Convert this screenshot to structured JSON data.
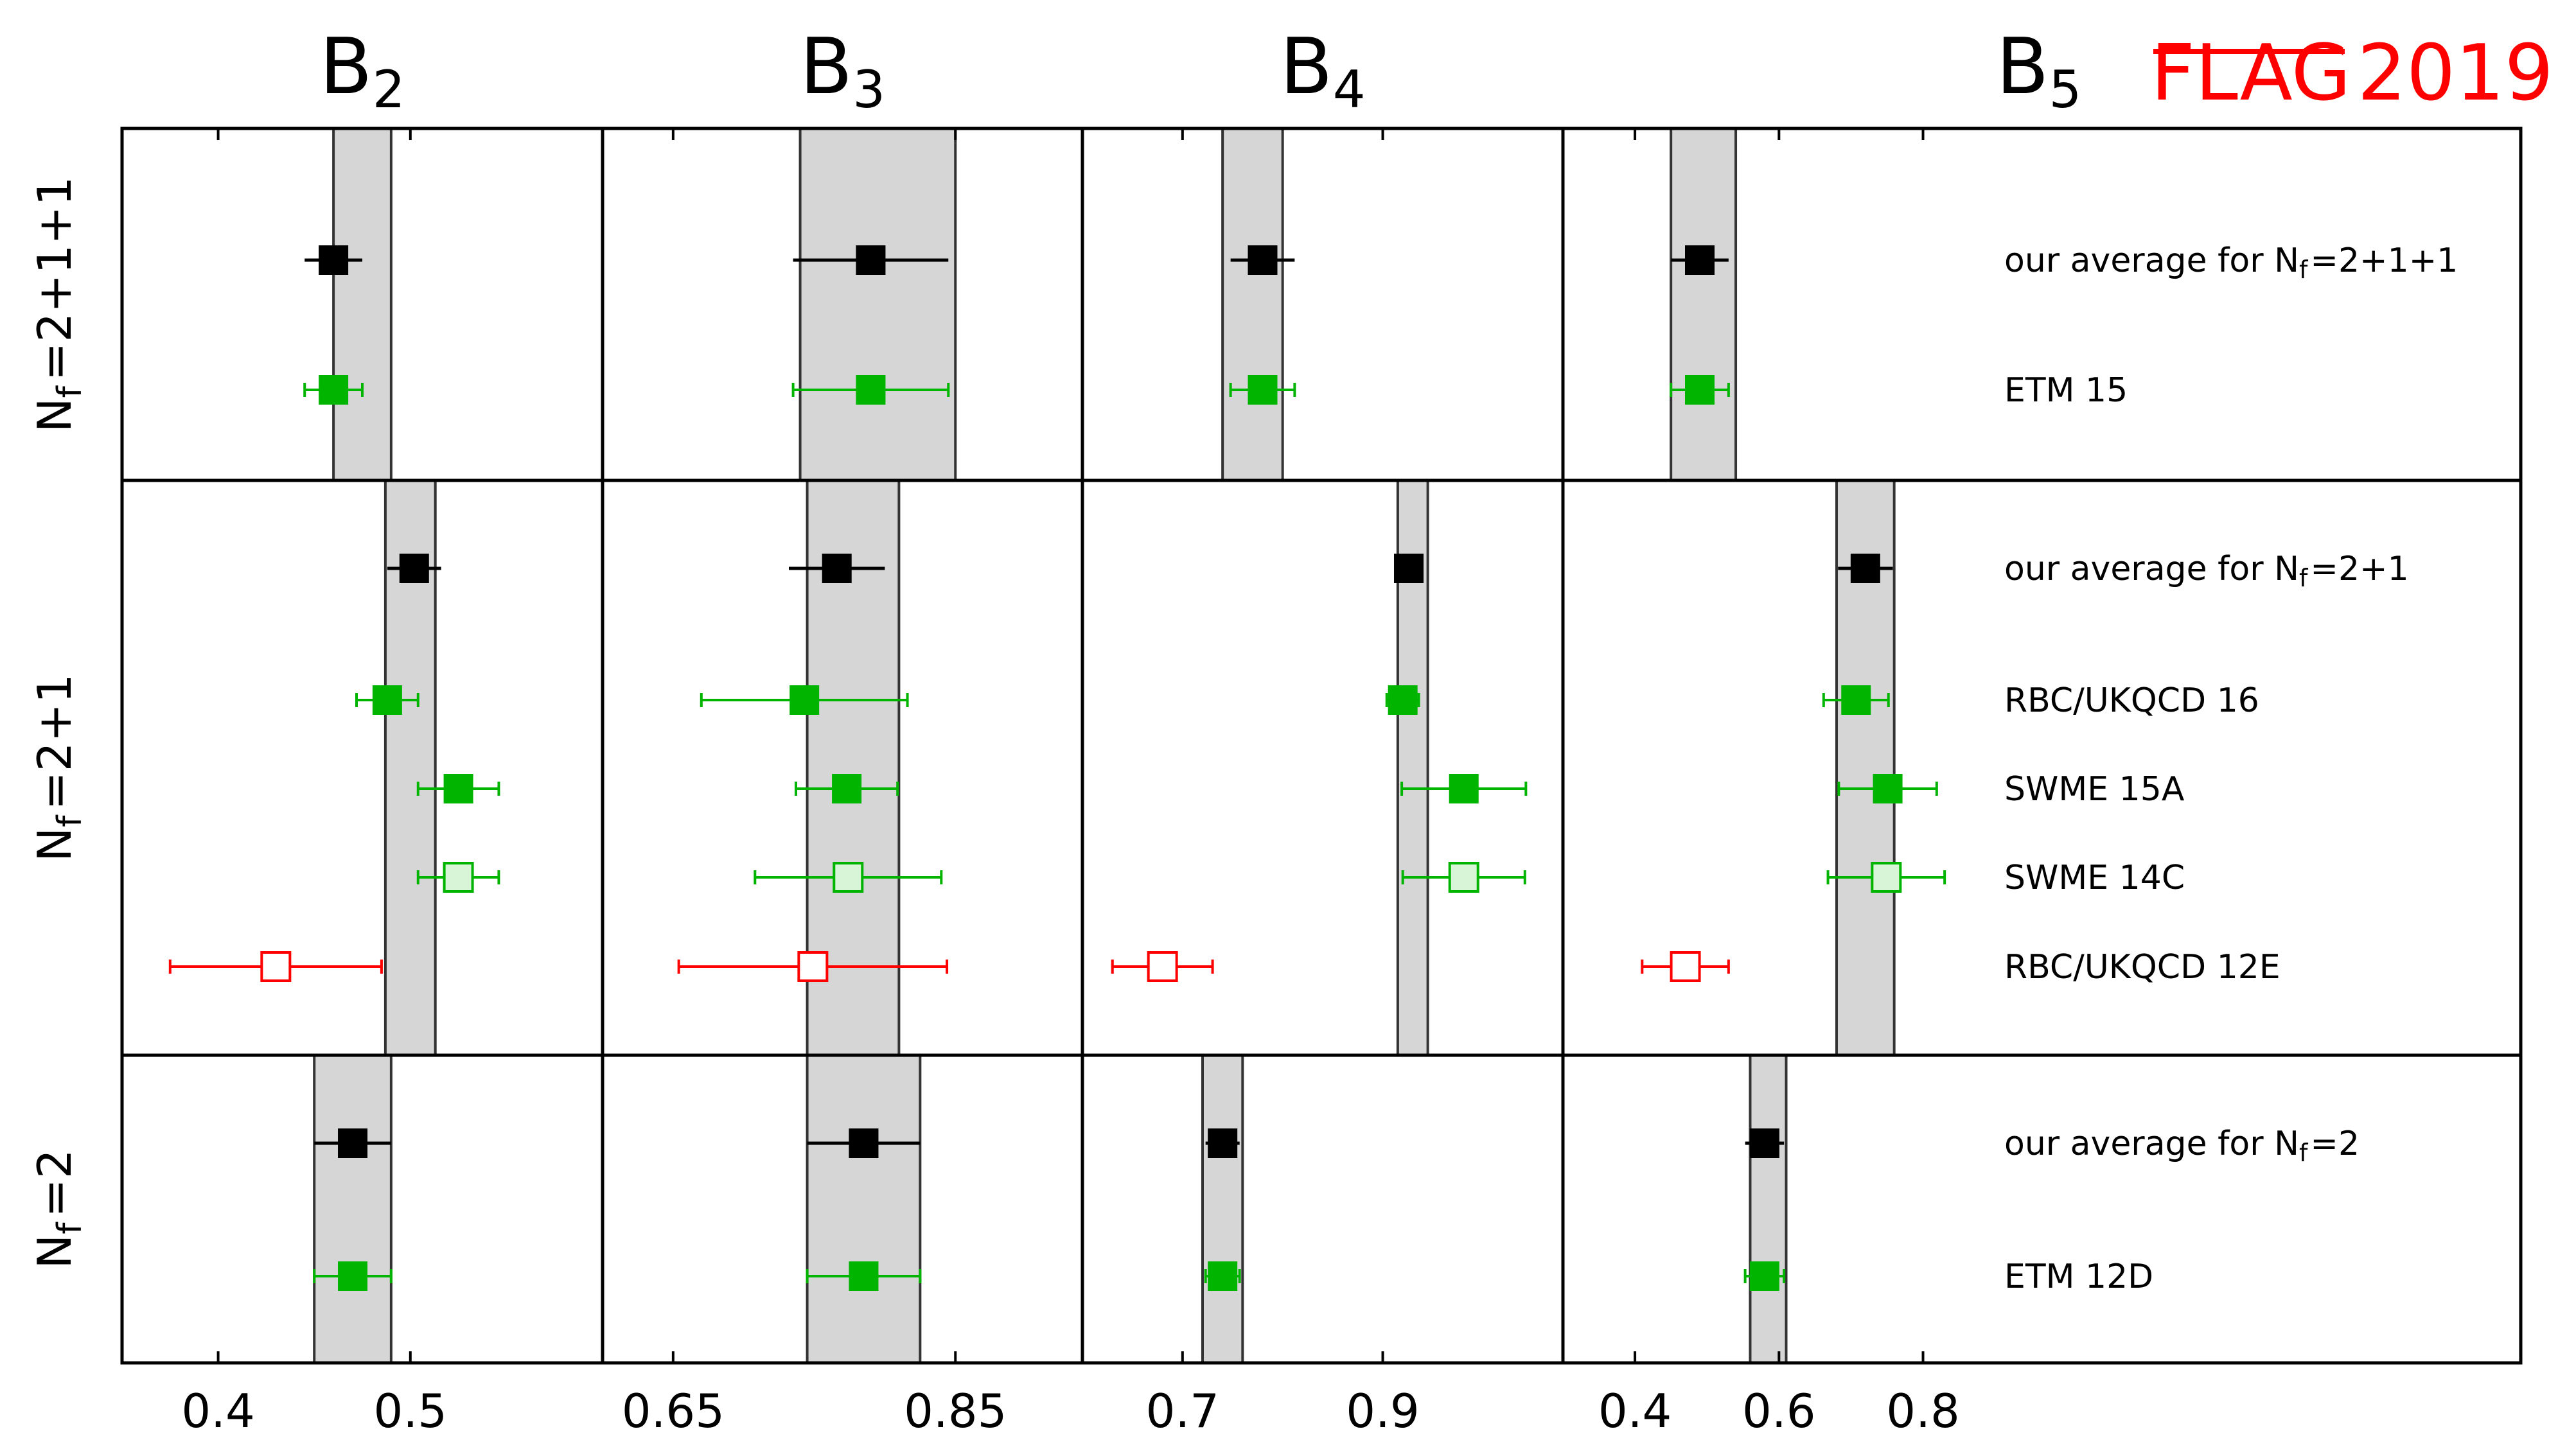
{
  "logo": {
    "flag": "FLAG",
    "year": "2019"
  },
  "chart_data": {
    "type": "errorbar",
    "columns": [
      {
        "id": "B2",
        "title_main": "B",
        "title_sub": "2",
        "xlim": [
          0.35,
          0.6
        ],
        "ticks": [
          0.4,
          0.5
        ],
        "tick_labels": [
          "0.4",
          "0.5"
        ]
      },
      {
        "id": "B3",
        "title_main": "B",
        "title_sub": "3",
        "xlim": [
          0.6,
          0.94
        ],
        "ticks": [
          0.65,
          0.85
        ],
        "tick_labels": [
          "0.65",
          "0.85"
        ]
      },
      {
        "id": "B4",
        "title_main": "B",
        "title_sub": "4",
        "xlim": [
          0.6,
          1.08
        ],
        "ticks": [
          0.7,
          0.9
        ],
        "tick_labels": [
          "0.7",
          "0.9"
        ]
      },
      {
        "id": "B5",
        "title_main": "B",
        "title_sub": "5",
        "xlim": [
          0.3,
          1.63
        ],
        "ticks": [
          0.4,
          0.6,
          0.8
        ],
        "tick_labels": [
          "0.4",
          "0.6",
          "0.8"
        ]
      }
    ],
    "groups": [
      {
        "label_main": "N",
        "label_sub": "f",
        "label_rest": "=2+1+1",
        "averages": {
          "B2": [
            0.46,
            0.49
          ],
          "B3": [
            0.74,
            0.85
          ],
          "B4": [
            0.74,
            0.8
          ],
          "B5": [
            0.45,
            0.54
          ]
        },
        "entries": [
          {
            "label": "our average for N",
            "label_sub": "f",
            "label_rest": "=2+1+1",
            "kind": "average",
            "color": "#000000",
            "fill": "filled",
            "values": {
              "B2": [
                0.46,
                0.015,
                0.015
              ],
              "B3": [
                0.79,
                0.055,
                0.055
              ],
              "B4": [
                0.78,
                0.032,
                0.032
              ],
              "B5": [
                0.49,
                0.04,
                0.04
              ]
            }
          },
          {
            "label": "ETM 15",
            "kind": "result",
            "color": "#00b400",
            "fill": "filled",
            "values": {
              "B2": [
                0.46,
                0.015,
                0.015
              ],
              "B3": [
                0.79,
                0.055,
                0.055
              ],
              "B4": [
                0.78,
                0.032,
                0.032
              ],
              "B5": [
                0.49,
                0.04,
                0.04
              ]
            }
          }
        ]
      },
      {
        "label_main": "N",
        "label_sub": "f",
        "label_rest": "=2+1",
        "averages": {
          "B2": [
            0.487,
            0.513
          ],
          "B3": [
            0.745,
            0.81
          ],
          "B4": [
            0.915,
            0.945
          ],
          "B5": [
            0.68,
            0.76
          ]
        },
        "entries": [
          {
            "label": "our average for N",
            "label_sub": "f",
            "label_rest": "=2+1",
            "kind": "average",
            "color": "#000000",
            "fill": "filled",
            "values": {
              "B2": [
                0.502,
                0.014,
                0.014
              ],
              "B3": [
                0.766,
                0.034,
                0.034
              ],
              "B4": [
                0.926,
                0.012,
                0.012
              ],
              "B5": [
                0.72,
                0.038,
                0.038
              ]
            }
          },
          {
            "label": "RBC/UKQCD 16",
            "kind": "result",
            "color": "#00b400",
            "fill": "filled",
            "values": {
              "B2": [
                0.488,
                0.016,
                0.016
              ],
              "B3": [
                0.743,
                0.073,
                0.073
              ],
              "B4": [
                0.92,
                0.016,
                0.016
              ],
              "B5": [
                0.707,
                0.045,
                0.045
              ]
            }
          },
          {
            "label": "SWME 15A",
            "kind": "result",
            "color": "#00b400",
            "fill": "filled",
            "values": {
              "B2": [
                0.525,
                0.021,
                0.021
              ],
              "B3": [
                0.773,
                0.036,
                0.036
              ],
              "B4": [
                0.981,
                0.062,
                0.062
              ],
              "B5": [
                0.751,
                0.068,
                0.068
              ]
            }
          },
          {
            "label": "SWME 14C",
            "kind": "result",
            "color": "#00b400",
            "fill": "open-light",
            "values": {
              "B2": [
                0.525,
                0.021,
                0.021
              ],
              "B3": [
                0.774,
                0.066,
                0.066
              ],
              "B4": [
                0.981,
                0.061,
                0.061
              ],
              "B5": [
                0.749,
                0.081,
                0.081
              ]
            }
          },
          {
            "label": "RBC/UKQCD 12E",
            "kind": "result",
            "color": "#ff0000",
            "fill": "open",
            "values": {
              "B2": [
                0.43,
                0.055,
                0.055
              ],
              "B3": [
                0.749,
                0.095,
                0.095
              ],
              "B4": [
                0.68,
                0.05,
                0.05
              ],
              "B5": [
                0.47,
                0.06,
                0.06
              ]
            }
          }
        ]
      },
      {
        "label_main": "N",
        "label_sub": "f",
        "label_rest": "=2",
        "averages": {
          "B2": [
            0.45,
            0.49
          ],
          "B3": [
            0.745,
            0.825
          ],
          "B4": [
            0.72,
            0.76
          ],
          "B5": [
            0.56,
            0.61
          ]
        },
        "entries": [
          {
            "label": "our average for N",
            "label_sub": "f",
            "label_rest": "=2",
            "kind": "average",
            "color": "#000000",
            "fill": "filled",
            "values": {
              "B2": [
                0.47,
                0.02,
                0.02
              ],
              "B3": [
                0.785,
                0.04,
                0.04
              ],
              "B4": [
                0.74,
                0.017,
                0.017
              ],
              "B5": [
                0.58,
                0.027,
                0.027
              ]
            }
          },
          {
            "label": "ETM 12D",
            "kind": "result",
            "color": "#00b400",
            "fill": "filled",
            "values": {
              "B2": [
                0.47,
                0.02,
                0.02
              ],
              "B3": [
                0.785,
                0.04,
                0.04
              ],
              "B4": [
                0.74,
                0.017,
                0.017
              ],
              "B5": [
                0.58,
                0.027,
                0.027
              ]
            }
          }
        ]
      }
    ]
  }
}
